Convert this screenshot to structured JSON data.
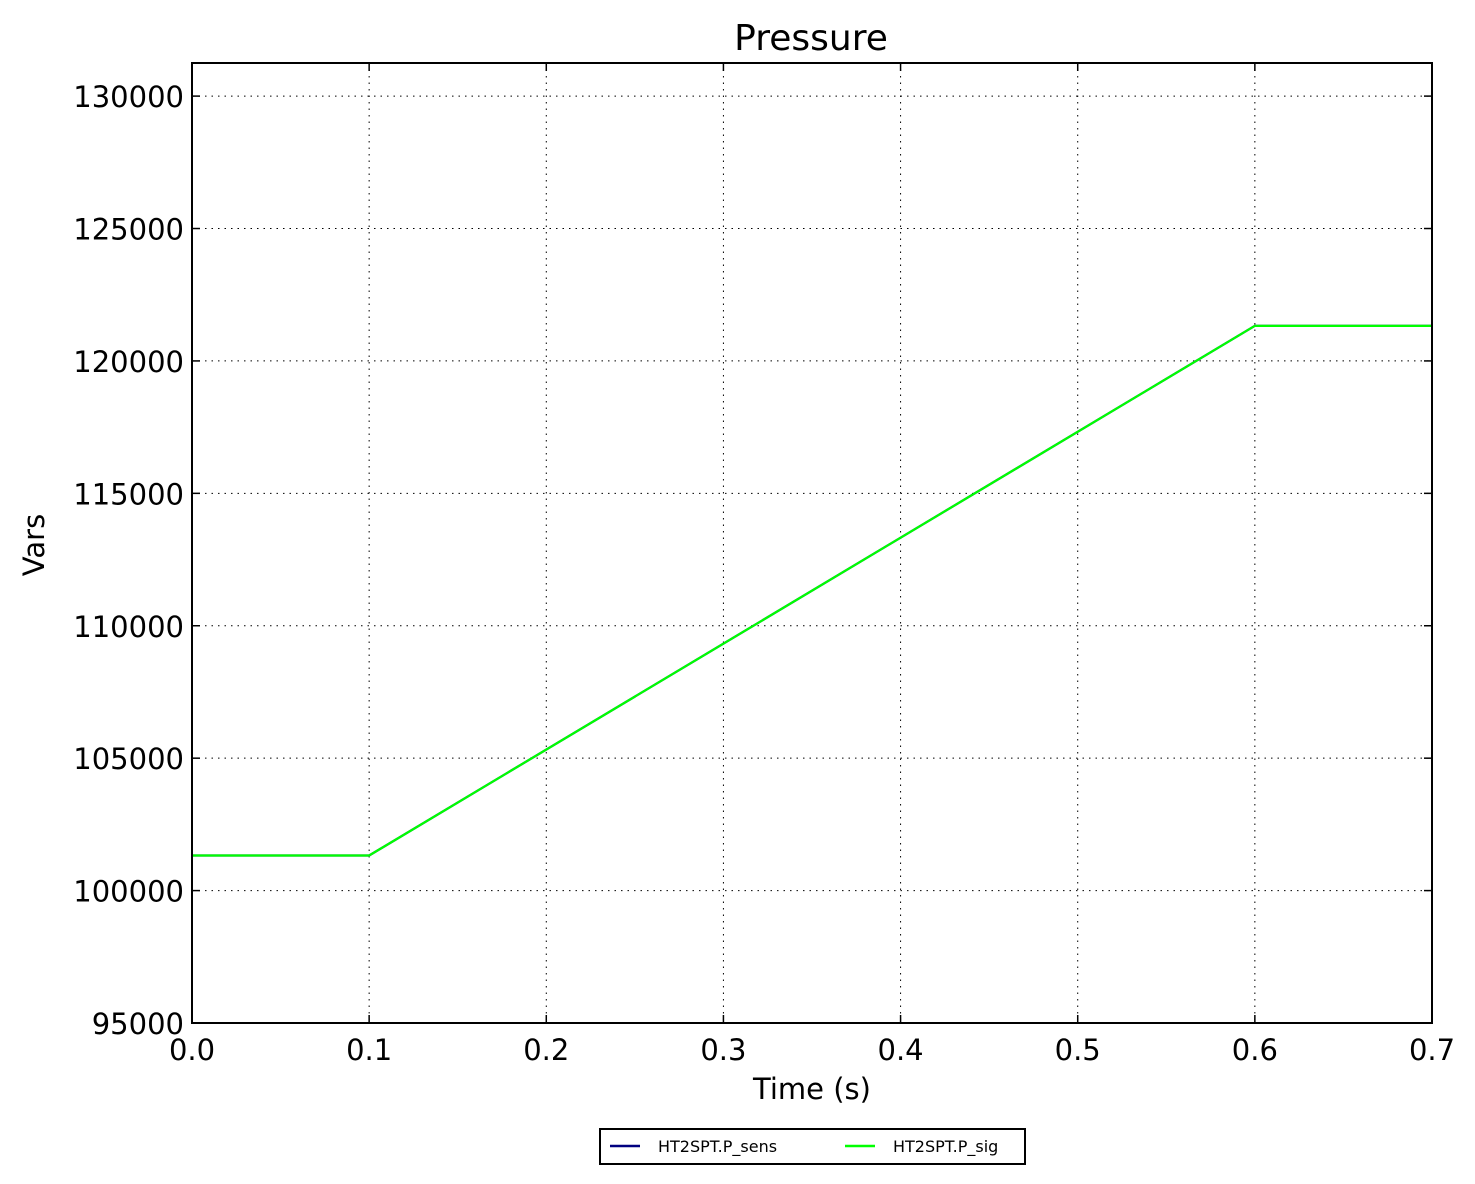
{
  "chart_data": {
    "type": "line",
    "title": "Pressure",
    "xlabel": "Time (s)",
    "ylabel": "Vars",
    "xlim": [
      0.0,
      0.7
    ],
    "ylim": [
      95000,
      131250
    ],
    "xticks": [
      "0.0",
      "0.1",
      "0.2",
      "0.3",
      "0.4",
      "0.5",
      "0.6",
      "0.7"
    ],
    "yticks": [
      "95000",
      "100000",
      "105000",
      "110000",
      "115000",
      "120000",
      "125000",
      "130000"
    ],
    "grid": true,
    "legend_position": "bottom-center",
    "series": [
      {
        "name": "HT2SPT.P_sens",
        "color": "#000080",
        "x": [
          0.0,
          0.1,
          0.6,
          0.7
        ],
        "y": [
          101325,
          101325,
          121325,
          121325
        ]
      },
      {
        "name": "HT2SPT.P_sig",
        "color": "#00ff00",
        "x": [
          0.0,
          0.1,
          0.6,
          0.7
        ],
        "y": [
          101325,
          101325,
          121325,
          121325
        ]
      }
    ]
  }
}
